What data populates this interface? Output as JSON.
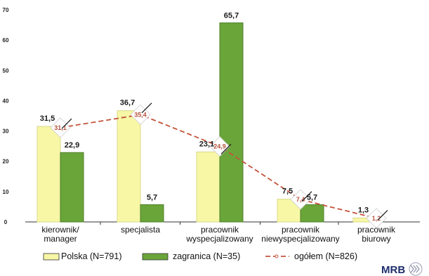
{
  "chart_data": {
    "type": "bar",
    "categories": [
      [
        "kierownik/",
        "manager"
      ],
      [
        "specjalista"
      ],
      [
        "pracownik",
        "wyspecjalizowany"
      ],
      [
        "pracownik",
        "niewyspecjalizowany"
      ],
      [
        "pracownik",
        "biurowy"
      ]
    ],
    "series": [
      {
        "name": "Polska (N=791)",
        "type": "bar",
        "color": "#f7f7a6",
        "values": [
          31.5,
          36.7,
          23.1,
          7.5,
          1.3
        ],
        "labels": [
          "31,5",
          "36,7",
          "23,1",
          "7,5",
          "1,3"
        ]
      },
      {
        "name": "zagranica (N=35)",
        "type": "bar",
        "color": "#6aa53a",
        "values": [
          22.9,
          5.7,
          65.7,
          5.7,
          0
        ],
        "labels": [
          "22,9",
          "5,7",
          "65,7",
          "5,7",
          ""
        ]
      },
      {
        "name": "ogółem (N=826)",
        "type": "line",
        "color": "#c4533b",
        "values": [
          31.1,
          35.4,
          24.9,
          7.4,
          1.2
        ],
        "labels": [
          "31,1",
          "35,4",
          "24,9",
          "7,4",
          "1,2"
        ]
      }
    ],
    "ylim": [
      0,
      70
    ],
    "yticks": [
      0,
      10,
      20,
      30,
      40,
      50,
      60,
      70
    ],
    "grid": false,
    "legend_position": "bottom",
    "logo_text": "MRB"
  }
}
